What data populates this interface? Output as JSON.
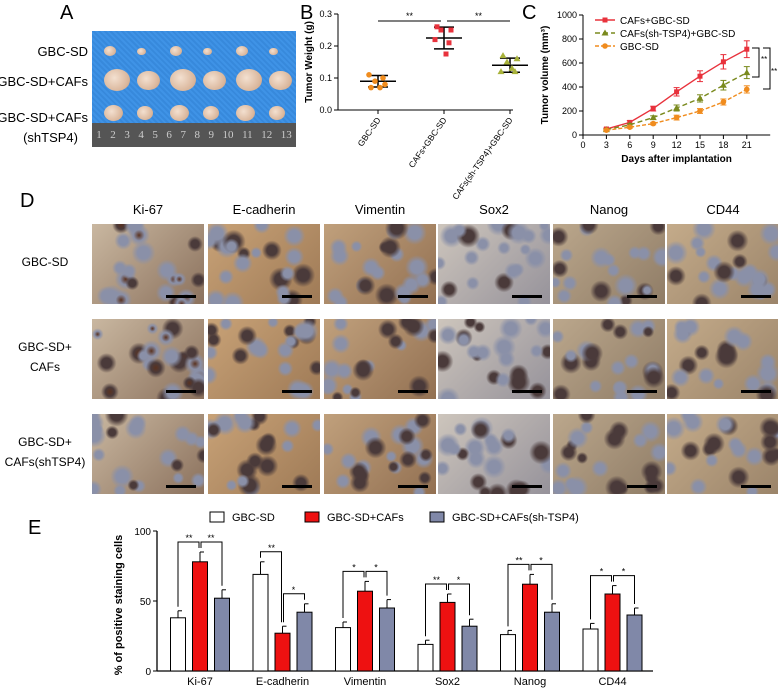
{
  "panels": {
    "a": "A",
    "b": "B",
    "c": "C",
    "d": "D",
    "e": "E"
  },
  "panel_a": {
    "rows": [
      "GBC-SD",
      "GBC-SD+CAFs",
      "GBC-SD+CAFs",
      "(shTSP4)"
    ],
    "ruler": [
      "1",
      "2",
      "3",
      "4",
      "5",
      "6",
      "7",
      "8",
      "9",
      "10",
      "11",
      "12",
      "13"
    ]
  },
  "chart_data": [
    {
      "type": "scatter",
      "panel": "B",
      "ylabel": "Tumor Weight (g)",
      "ylim": [
        0,
        0.3
      ],
      "yticks": [
        "0.0",
        "0.1",
        "0.2",
        "0.3"
      ],
      "categories": [
        "GBC-SD",
        "CAFs+GBC-SD",
        "CAFs(sh-TSP4)+GBC-SD"
      ],
      "colors": [
        "#f08c1e",
        "#e8323c",
        "#a8b23a"
      ],
      "points": [
        [
          0.07,
          0.08,
          0.09,
          0.1,
          0.11,
          0.07
        ],
        [
          0.26,
          0.25,
          0.25,
          0.21,
          0.22,
          0.175
        ],
        [
          0.17,
          0.16,
          0.15,
          0.12,
          0.12,
          0.13
        ]
      ],
      "mean": [
        0.09,
        0.225,
        0.14
      ],
      "sd": [
        0.018,
        0.034,
        0.022
      ],
      "significance": [
        {
          "from": 0,
          "to": 1,
          "label": "**"
        },
        {
          "from": 1,
          "to": 2,
          "label": "**"
        }
      ]
    },
    {
      "type": "line",
      "panel": "C",
      "xlabel": "Days after implantation",
      "ylabel": "Tumor volume (mm³)",
      "xlim": [
        0,
        24
      ],
      "ylim": [
        0,
        1000
      ],
      "xticks": [
        "0",
        "3",
        "6",
        "9",
        "12",
        "15",
        "18",
        "21"
      ],
      "yticks": [
        "0",
        "200",
        "400",
        "600",
        "800",
        "1000"
      ],
      "x": [
        3,
        6,
        9,
        12,
        15,
        18,
        21
      ],
      "legend": "top-left",
      "series": [
        {
          "name": "CAFs+GBC-SD",
          "color": "#e8323c",
          "marker": "square",
          "values": [
            50,
            105,
            220,
            360,
            490,
            610,
            715
          ],
          "err": [
            8,
            15,
            20,
            35,
            45,
            60,
            70
          ]
        },
        {
          "name": "CAFs(sh-TSP4)+GBC-SD",
          "color": "#7a8a1e",
          "marker": "triangle",
          "values": [
            45,
            85,
            145,
            225,
            305,
            415,
            520
          ],
          "err": [
            6,
            10,
            15,
            25,
            30,
            40,
            50
          ]
        },
        {
          "name": "GBC-SD",
          "color": "#f08c1e",
          "marker": "circle",
          "values": [
            40,
            65,
            95,
            145,
            200,
            275,
            380
          ],
          "err": [
            5,
            8,
            10,
            20,
            20,
            25,
            30
          ]
        }
      ],
      "significance": [
        "**",
        "**"
      ]
    },
    {
      "type": "bar",
      "panel": "E",
      "ylabel": "% of positive staining cells",
      "ylim": [
        0,
        100
      ],
      "yticks": [
        "0",
        "50",
        "100"
      ],
      "categories": [
        "Ki-67",
        "E-cadherin",
        "Vimentin",
        "Sox2",
        "Nanog",
        "CD44"
      ],
      "legend": "top",
      "series": [
        {
          "name": "GBC-SD",
          "color": "#ffffff",
          "values": [
            38,
            69,
            31,
            19,
            26,
            30
          ],
          "err": [
            5,
            9,
            4,
            3,
            3,
            4
          ]
        },
        {
          "name": "GBC-SD+CAFs",
          "color": "#ee1111",
          "values": [
            78,
            27,
            57,
            49,
            62,
            55
          ],
          "err": [
            7,
            5,
            7,
            6,
            7,
            6
          ]
        },
        {
          "name": "GBC-SD+CAFs(sh-TSP4)",
          "color": "#8088a8",
          "values": [
            52,
            42,
            45,
            32,
            42,
            40
          ],
          "err": [
            6,
            6,
            6,
            5,
            6,
            5
          ]
        }
      ],
      "significance": [
        [
          "**",
          "**"
        ],
        [
          "**",
          "*"
        ],
        [
          "*",
          "*"
        ],
        [
          "**",
          "*"
        ],
        [
          "**",
          "*"
        ],
        [
          "*",
          "*"
        ]
      ]
    }
  ],
  "panel_d": {
    "columns": [
      "Ki-67",
      "E-cadherin",
      "Vimentin",
      "Sox2",
      "Nanog",
      "CD44"
    ],
    "rows": [
      [
        "GBC-SD"
      ],
      [
        "GBC-SD+",
        "CAFs"
      ],
      [
        "GBC-SD+",
        "CAFs(shTSP4)"
      ]
    ]
  }
}
